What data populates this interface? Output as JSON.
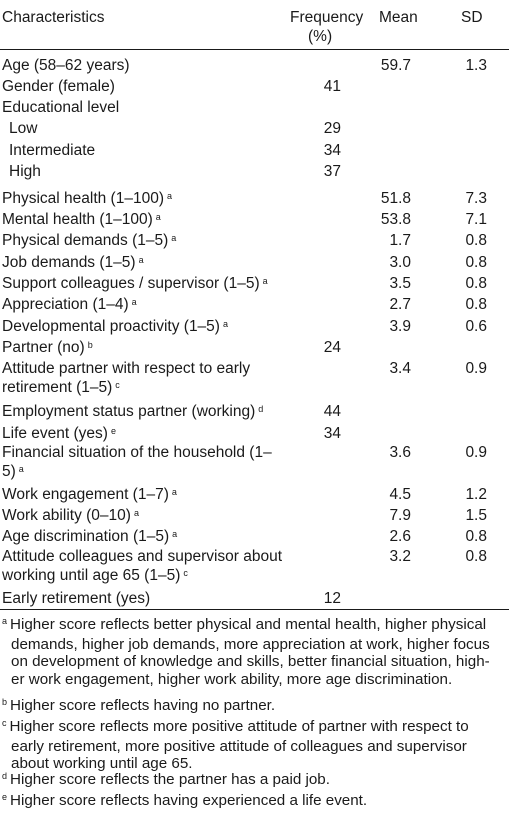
{
  "headers": {
    "characteristics": "Characteristics",
    "frequency_line1": "Frequency",
    "frequency_line2": "(%)",
    "mean": "Mean",
    "sd": "SD"
  },
  "rows": [
    {
      "label": "Age (58–62 years)",
      "sup": "",
      "freq": "",
      "mean": "59.7",
      "sd": "1.3"
    },
    {
      "label": "Gender (female)",
      "sup": "",
      "freq": "41",
      "mean": "",
      "sd": ""
    },
    {
      "label": "Educational level",
      "sup": "",
      "freq": "",
      "mean": "",
      "sd": ""
    },
    {
      "label": "Low",
      "sup": "",
      "freq": "29",
      "mean": "",
      "sd": ""
    },
    {
      "label": "Intermediate",
      "sup": "",
      "freq": "34",
      "mean": "",
      "sd": ""
    },
    {
      "label": "High",
      "sup": "",
      "freq": "37",
      "mean": "",
      "sd": ""
    },
    {
      "label": "Physical health (1–100)",
      "sup": "a",
      "freq": "",
      "mean": "51.8",
      "sd": "7.3"
    },
    {
      "label": "Mental health (1–100)",
      "sup": "a",
      "freq": "",
      "mean": "53.8",
      "sd": "7.1"
    },
    {
      "label": "Physical demands (1–5)",
      "sup": "a",
      "freq": "",
      "mean": "1.7",
      "sd": "0.8"
    },
    {
      "label": "Job demands (1–5)",
      "sup": "a",
      "freq": "",
      "mean": "3.0",
      "sd": "0.8"
    },
    {
      "label": "Support colleagues / supervisor (1–5)",
      "sup": "a",
      "freq": "",
      "mean": "3.5",
      "sd": "0.8"
    },
    {
      "label": "Appreciation (1–4)",
      "sup": "a",
      "freq": "",
      "mean": "2.7",
      "sd": "0.8"
    },
    {
      "label": "Developmental proactivity (1–5)",
      "sup": "a",
      "freq": "",
      "mean": "3.9",
      "sd": "0.6"
    },
    {
      "label": "Partner (no)",
      "sup": "b",
      "freq": "24",
      "mean": "",
      "sd": ""
    },
    {
      "label": "Attitude partner with respect to early retirement (1–5)",
      "sup": "c",
      "freq": "",
      "mean": "3.4",
      "sd": "0.9"
    },
    {
      "label": "Employment status partner (working)",
      "sup": "d",
      "freq": "44",
      "mean": "",
      "sd": ""
    },
    {
      "label": "Life event (yes)",
      "sup": "e",
      "freq": "34",
      "mean": "",
      "sd": ""
    },
    {
      "label": "Financial situation of the household (1–5)",
      "sup": "a",
      "freq": "",
      "mean": "3.6",
      "sd": "0.9"
    },
    {
      "label": "Work engagement (1–7)",
      "sup": "a",
      "freq": "",
      "mean": "4.5",
      "sd": "1.2"
    },
    {
      "label": "Work ability (0–10)",
      "sup": "a",
      "freq": "",
      "mean": "7.9",
      "sd": "1.5"
    },
    {
      "label": "Age discrimination (1–5)",
      "sup": "a",
      "freq": "",
      "mean": "2.6",
      "sd": "0.8"
    },
    {
      "label": "Attitude colleagues and supervisor about working until age 65 (1–5)",
      "sup": "c",
      "freq": "",
      "mean": "3.2",
      "sd": "0.8"
    },
    {
      "label": "Early retirement (yes)",
      "sup": "",
      "freq": "12",
      "mean": "",
      "sd": ""
    }
  ],
  "footnotes": [
    {
      "mark": "a",
      "lines": [
        "Higher score reflects better physical and mental health, higher physical",
        "demands, higher job demands, more appreciation at work, higher focus",
        "on development of knowledge and skills, better financial situation, high-",
        "er work engagement, higher work ability, more age discrimination."
      ]
    },
    {
      "mark": "b",
      "lines": [
        "Higher score reflects having no partner."
      ]
    },
    {
      "mark": "c",
      "lines": [
        "Higher score reflects more positive attitude of partner with respect to",
        "early retirement, more positive attitude of colleagues and supervisor",
        "about working until age 65."
      ]
    },
    {
      "mark": "d",
      "lines": [
        "Higher score reflects the partner has a paid job."
      ]
    },
    {
      "mark": "e",
      "lines": [
        "Higher score reflects having experienced a life event."
      ]
    }
  ]
}
